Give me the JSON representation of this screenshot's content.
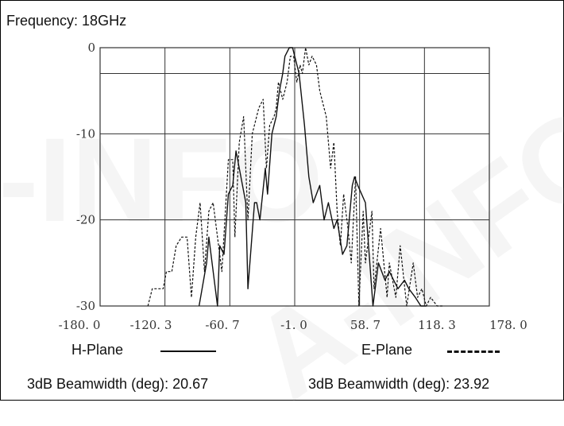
{
  "frequency_label": "Frequency: 18GHz",
  "legend": {
    "h_plane": "H-Plane",
    "e_plane": "E-Plane"
  },
  "beamwidth": {
    "h": "3dB Beamwidth (deg): 20.67",
    "e": "3dB Beamwidth (deg): 23.92"
  },
  "watermark": "A-INFO",
  "chart_data": {
    "type": "line",
    "title": "",
    "xlabel": "",
    "ylabel": "",
    "x_ticks": [
      "-180. 0",
      "-120. 3",
      "-60. 7",
      "-1. 0",
      "58. 7",
      "118. 3",
      "178. 0"
    ],
    "y_ticks": [
      "0",
      "-10",
      "-20",
      "-30"
    ],
    "xlim": [
      -180,
      178
    ],
    "ylim": [
      -30,
      0
    ],
    "grid": true,
    "reference_line_db": -3,
    "series": [
      {
        "name": "H-Plane",
        "style": "solid",
        "x": [
          -89,
          -82,
          -80,
          -72,
          -70,
          -66,
          -62,
          -58,
          -55,
          -46,
          -44,
          -38,
          -36,
          -33,
          -28,
          -26,
          -22,
          -18,
          -15,
          -12,
          -10,
          -6,
          -3,
          -1,
          3,
          8,
          12,
          16,
          22,
          26,
          30,
          35,
          38,
          43,
          47,
          52,
          54,
          57,
          64,
          71,
          76,
          82,
          86,
          94,
          100,
          104,
          110,
          115,
          120
        ],
        "y": [
          -30,
          -25,
          -22,
          -30,
          -23,
          -24,
          -17,
          -16,
          -12,
          -18,
          -28,
          -18,
          -18,
          -20,
          -14,
          -17,
          -10,
          -8,
          -5,
          -3,
          -1,
          0,
          0,
          -1,
          -3,
          -9,
          -15,
          -18,
          -16,
          -20,
          -18,
          -21,
          -20,
          -24,
          -23,
          -16,
          -15,
          -16,
          -18,
          -30,
          -25,
          -27,
          -26,
          -28,
          -27,
          -28,
          -29,
          -30,
          -30
        ]
      },
      {
        "name": "E-Plane",
        "style": "dashed",
        "x": [
          -136,
          -132,
          -122,
          -119,
          -114,
          -110,
          -105,
          -100,
          -96,
          -92,
          -88,
          -84,
          -80,
          -76,
          -72,
          -68,
          -62,
          -58,
          -56,
          -52,
          -48,
          -44,
          -40,
          -34,
          -30,
          -27,
          -24,
          -20,
          -18,
          -16,
          -12,
          -8,
          -5,
          -2,
          1,
          4,
          6,
          9,
          12,
          15,
          19,
          22,
          24,
          28,
          32,
          35,
          38,
          41,
          44,
          48,
          51,
          55,
          58,
          62,
          64,
          70,
          72,
          78,
          84,
          86,
          92,
          96,
          102,
          108,
          112,
          116,
          120,
          124,
          130,
          135
        ],
        "y": [
          -30,
          -28,
          -28,
          -26,
          -26,
          -23,
          -22,
          -22,
          -29,
          -22,
          -18,
          -26,
          -19,
          -18,
          -22,
          -26,
          -13,
          -13,
          -22,
          -11,
          -8,
          -20,
          -10,
          -7,
          -6,
          -14,
          -9,
          -8,
          -7,
          -4,
          -6,
          -4,
          -1,
          -1,
          -4,
          -2,
          -3,
          0,
          -2,
          -1,
          -2,
          -5,
          -6,
          -8,
          -14,
          -11,
          -19,
          -23,
          -17,
          -21,
          -25,
          -15,
          -30,
          -19,
          -25,
          -19,
          -28,
          -21,
          -29,
          -25,
          -29,
          -23,
          -30,
          -25,
          -29,
          -28,
          -30,
          -29,
          -30,
          -30
        ]
      }
    ]
  }
}
